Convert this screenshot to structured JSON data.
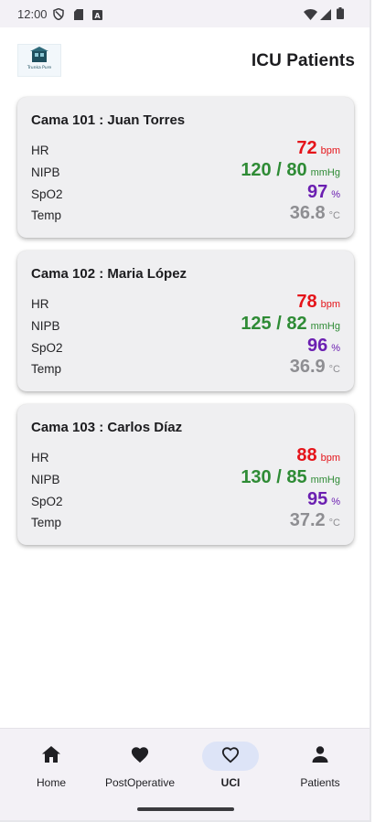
{
  "status_bar": {
    "time": "12:00"
  },
  "header": {
    "title": "ICU Patients",
    "logo_text": "Trunka Pure"
  },
  "patients": [
    {
      "title": "Cama 101 : Juan Torres",
      "hr": {
        "label": "HR",
        "value": "72",
        "unit": "bpm"
      },
      "nipb": {
        "label": "NIPB",
        "value": "120 / 80",
        "unit": "mmHg"
      },
      "spo2": {
        "label": "SpO2",
        "value": "97",
        "unit": "%"
      },
      "temp": {
        "label": "Temp",
        "value": "36.8",
        "unit": "°C"
      }
    },
    {
      "title": "Cama 102 : Maria López",
      "hr": {
        "label": "HR",
        "value": "78",
        "unit": "bpm"
      },
      "nipb": {
        "label": "NIPB",
        "value": "125 / 82",
        "unit": "mmHg"
      },
      "spo2": {
        "label": "SpO2",
        "value": "96",
        "unit": "%"
      },
      "temp": {
        "label": "Temp",
        "value": "36.9",
        "unit": "°C"
      }
    },
    {
      "title": "Cama 103 : Carlos Díaz",
      "hr": {
        "label": "HR",
        "value": "88",
        "unit": "bpm"
      },
      "nipb": {
        "label": "NIPB",
        "value": "130 / 85",
        "unit": "mmHg"
      },
      "spo2": {
        "label": "SpO2",
        "value": "95",
        "unit": "%"
      },
      "temp": {
        "label": "Temp",
        "value": "37.2",
        "unit": "°C"
      }
    }
  ],
  "colors": {
    "hr": "#e5141a",
    "nipb": "#2e8b35",
    "spo2": "#6b1fb1",
    "temp": "#8e8e92",
    "nav_active_bg": "#dde4f7"
  },
  "nav": [
    {
      "label": "Home",
      "icon": "home-icon",
      "active": false
    },
    {
      "label": "PostOperative",
      "icon": "heart-filled-icon",
      "active": false
    },
    {
      "label": "UCI",
      "icon": "heart-outline-icon",
      "active": true
    },
    {
      "label": "Patients",
      "icon": "person-icon",
      "active": false
    }
  ]
}
